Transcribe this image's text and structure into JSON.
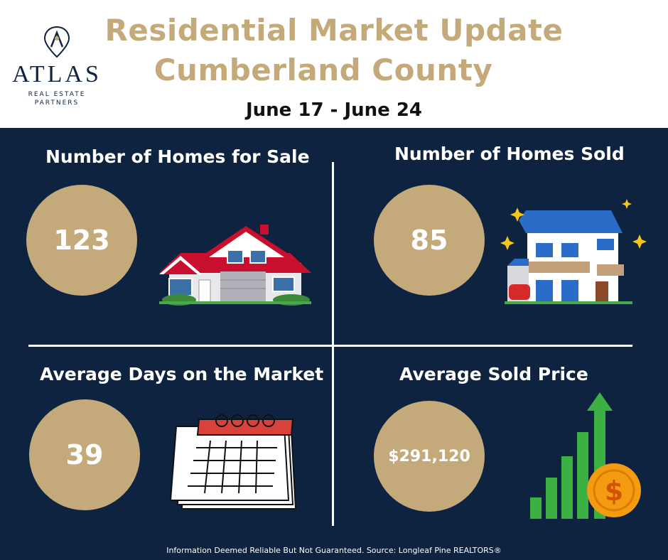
{
  "header": {
    "title_line1": "Residential Market Update",
    "title_line2": "Cumberland County",
    "date_range": "June 17 - June 24"
  },
  "logo": {
    "name": "ATLAS",
    "sub_line1": "REAL ESTATE",
    "sub_line2": "PARTNERS"
  },
  "stats": {
    "for_sale": {
      "label": "Number of Homes for Sale",
      "value": "123"
    },
    "sold": {
      "label": "Number of Homes Sold",
      "value": "85"
    },
    "days": {
      "label": "Average Days on the Market",
      "value": "39"
    },
    "price": {
      "label": "Average Sold Price",
      "value": "$291,120"
    }
  },
  "footer": "Information Deemed Reliable But Not Guaranteed. Source: Longleaf Pine REALTORS®",
  "colors": {
    "gold": "#c4aa7a",
    "navy": "#0e2340",
    "white": "#ffffff"
  }
}
